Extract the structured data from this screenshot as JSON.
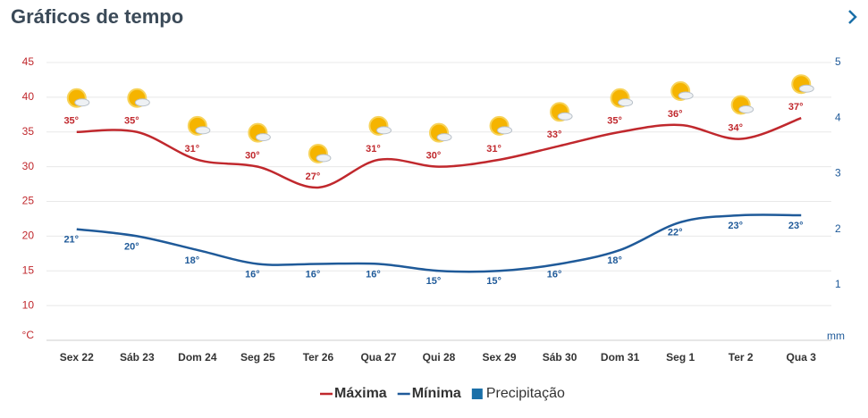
{
  "chart_data": {
    "type": "line",
    "title": "Gráficos de tempo",
    "y_unit": "°C",
    "y2_unit": "mm",
    "categories": [
      "Sex 22",
      "Sáb 23",
      "Dom 24",
      "Seg 25",
      "Ter 26",
      "Qua 27",
      "Qui 28",
      "Sex 29",
      "Sáb 30",
      "Dom 31",
      "Seg 1",
      "Ter 2",
      "Qua 3"
    ],
    "series": [
      {
        "name": "Máxima",
        "color": "#c0282d",
        "values": [
          35,
          35,
          31,
          30,
          27,
          31,
          30,
          31,
          33,
          35,
          36,
          34,
          37
        ],
        "value_labels": [
          "35°",
          "35°",
          "31°",
          "30°",
          "27°",
          "31°",
          "30°",
          "31°",
          "33°",
          "35°",
          "36°",
          "34°",
          "37°"
        ]
      },
      {
        "name": "Mínima",
        "color": "#1f5a99",
        "values": [
          21,
          20,
          18,
          16,
          16,
          16,
          15,
          15,
          16,
          18,
          22,
          23,
          23
        ],
        "value_labels": [
          "21°",
          "20°",
          "18°",
          "16°",
          "16°",
          "16°",
          "15°",
          "15°",
          "16°",
          "18°",
          "22°",
          "23°",
          "23°"
        ]
      },
      {
        "name": "Precipitação",
        "color": "#1a6fa8",
        "axis": "y2",
        "type": "bar",
        "values": [
          0,
          0,
          0,
          0,
          0,
          0,
          0,
          0,
          0,
          0,
          0,
          0,
          0
        ]
      }
    ],
    "ylim": [
      5,
      45
    ],
    "yticks": [
      10,
      15,
      20,
      25,
      30,
      35,
      40,
      45
    ],
    "y2lim": [
      0,
      5
    ],
    "y2ticks": [
      1,
      2,
      3,
      4,
      5
    ],
    "grid": true
  }
}
